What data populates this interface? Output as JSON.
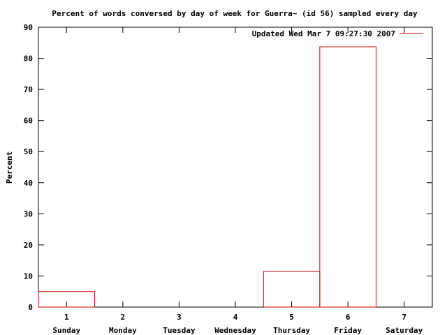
{
  "chart_data": {
    "type": "bar",
    "title": "Percent of words conversed by day of week for Guerra~ (id 56) sampled every day",
    "ylabel": "Percent",
    "xlabel": "",
    "x_ticks": [
      "1",
      "2",
      "3",
      "4",
      "5",
      "6",
      "7"
    ],
    "categories": [
      "Sunday",
      "Monday",
      "Tuesday",
      "Wednesday",
      "Thursday",
      "Friday",
      "Saturday"
    ],
    "ylim": [
      0,
      90
    ],
    "y_ticks": [
      0,
      10,
      20,
      30,
      40,
      50,
      60,
      70,
      80,
      90
    ],
    "grid": false,
    "legend_position": "top-right",
    "series": [
      {
        "name": "Updated Wed Mar  7 09:27:30 2007",
        "color": "#cc0000",
        "values": [
          5,
          0,
          0,
          0,
          11.5,
          83.7,
          0
        ]
      }
    ]
  }
}
